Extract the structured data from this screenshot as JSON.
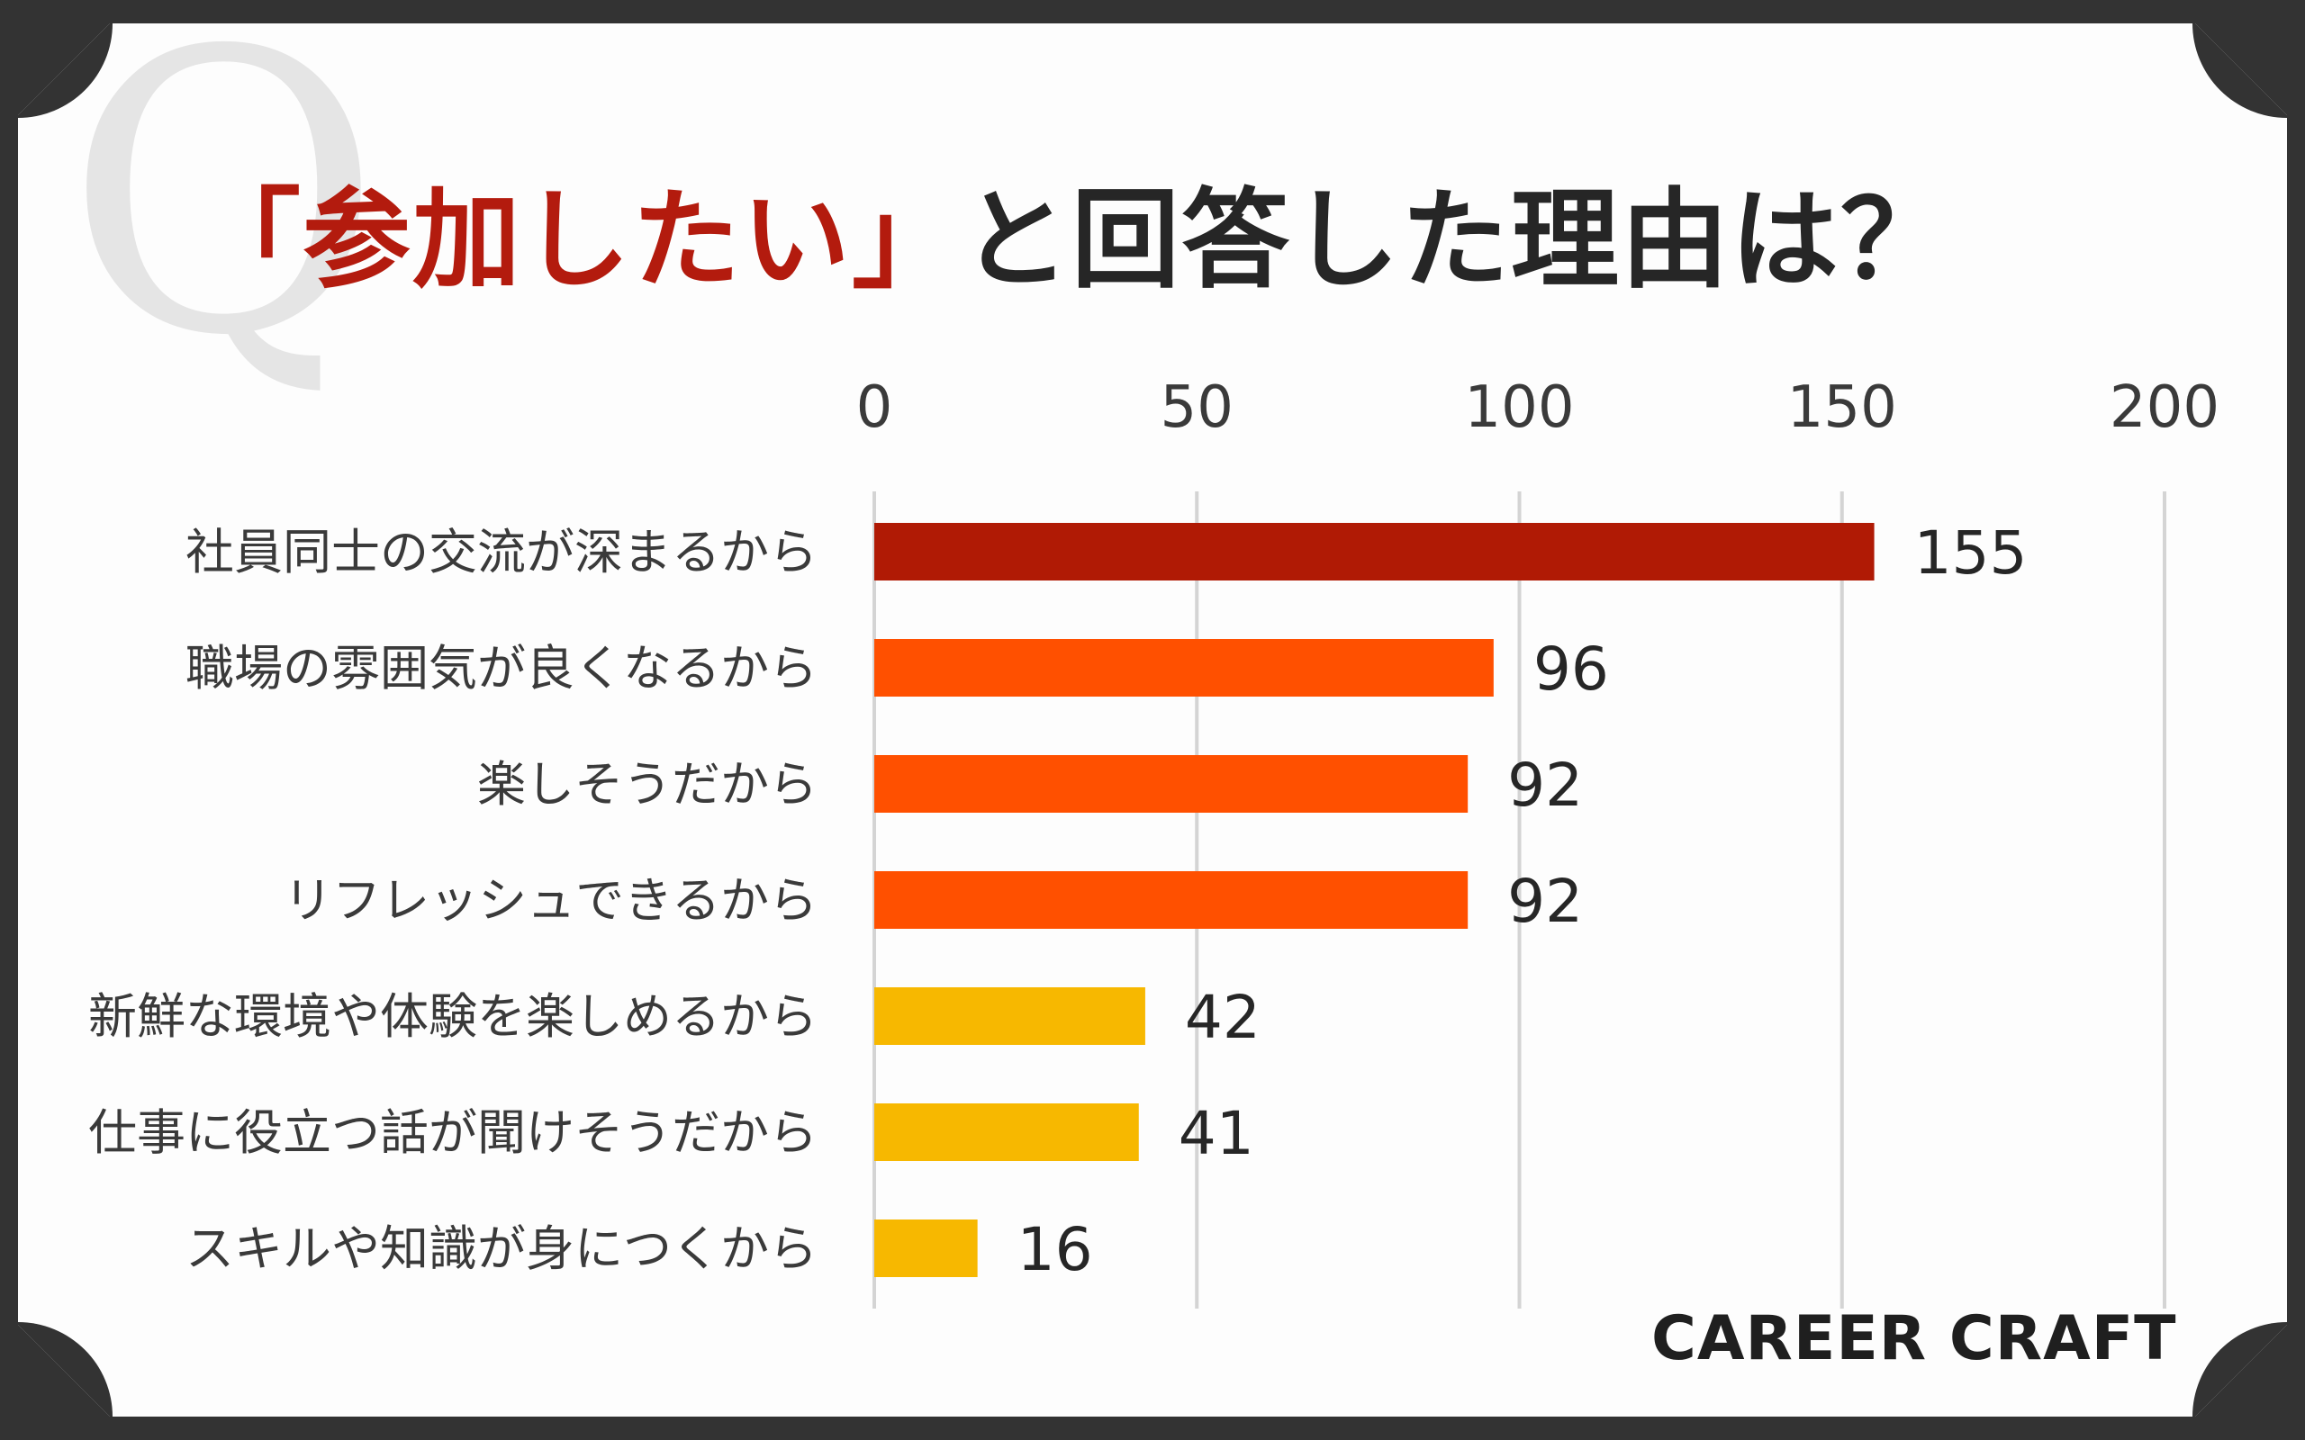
{
  "title": {
    "highlight": "「参加したい」",
    "rest": "と回答した理由は？"
  },
  "decoration": {
    "q_mark": "Q"
  },
  "brand": "CAREER CRAFT",
  "colors": {
    "background": "#333333",
    "card": "#fdfdfd",
    "title_highlight": "#b31b0e",
    "title_text": "#262626",
    "grid": "#d4d4d4",
    "bar_top": "#b01a05",
    "bar_mid": "#ff5000",
    "bar_low": "#f7b800"
  },
  "chart_data": {
    "type": "bar",
    "orientation": "horizontal",
    "categories": [
      "社員同士の交流が深まるから",
      "職場の雰囲気が良くなるから",
      "楽しそうだから",
      "リフレッシュできるから",
      "新鮮な環境や体験を楽しめるから",
      "仕事に役立つ話が聞けそうだから",
      "スキルや知識が身につくから"
    ],
    "values": [
      155,
      96,
      92,
      92,
      42,
      41,
      16
    ],
    "bar_colors": [
      "#b01a05",
      "#ff5000",
      "#ff5000",
      "#ff5000",
      "#f7b800",
      "#f7b800",
      "#f7b800"
    ],
    "xlim": [
      0,
      200
    ],
    "xticks": [
      0,
      50,
      100,
      150,
      200
    ],
    "x_axis_position": "top",
    "grid": true,
    "legend": false,
    "data_labels": true
  }
}
